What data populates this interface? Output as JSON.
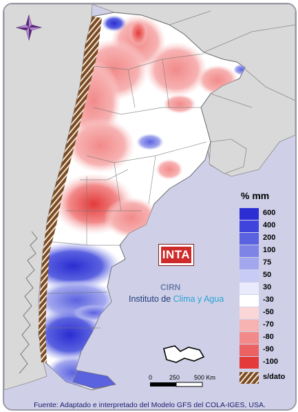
{
  "legend": {
    "title": "% mm",
    "items": [
      {
        "label": "600",
        "color": "#2c2dd2"
      },
      {
        "label": "400",
        "color": "#3e44dc"
      },
      {
        "label": "200",
        "color": "#5b62e0"
      },
      {
        "label": "100",
        "color": "#7d84e6"
      },
      {
        "label": "75",
        "color": "#a3a8ee"
      },
      {
        "label": "50",
        "color": "#c8cbf5"
      },
      {
        "label": "30",
        "color": "#e9eafb"
      },
      {
        "label": "-30",
        "color": "#ffffff"
      },
      {
        "label": "-50",
        "color": "#fbd6d6"
      },
      {
        "label": "-70",
        "color": "#f7b2b2"
      },
      {
        "label": "-80",
        "color": "#f28a8a"
      },
      {
        "label": "-90",
        "color": "#ec6262"
      },
      {
        "label": "-100",
        "color": "#e43a3a"
      },
      {
        "label": "s/dato",
        "color": "#8a5a2e"
      }
    ]
  },
  "logo": {
    "text": "INTA",
    "cirn": "CIRN",
    "institute_prefix": "Instituto de ",
    "institute_highlight": "Clima y Agua"
  },
  "scale": {
    "labels": [
      "0",
      "250",
      "500 Km"
    ]
  },
  "source": "Fuente: Adaptado e interpretado del Modelo GFS del COLA-IGES, USA.",
  "colors": {
    "background": "#cfd0e8",
    "land": "#d9d9d9",
    "water": "#cfd0e8"
  }
}
